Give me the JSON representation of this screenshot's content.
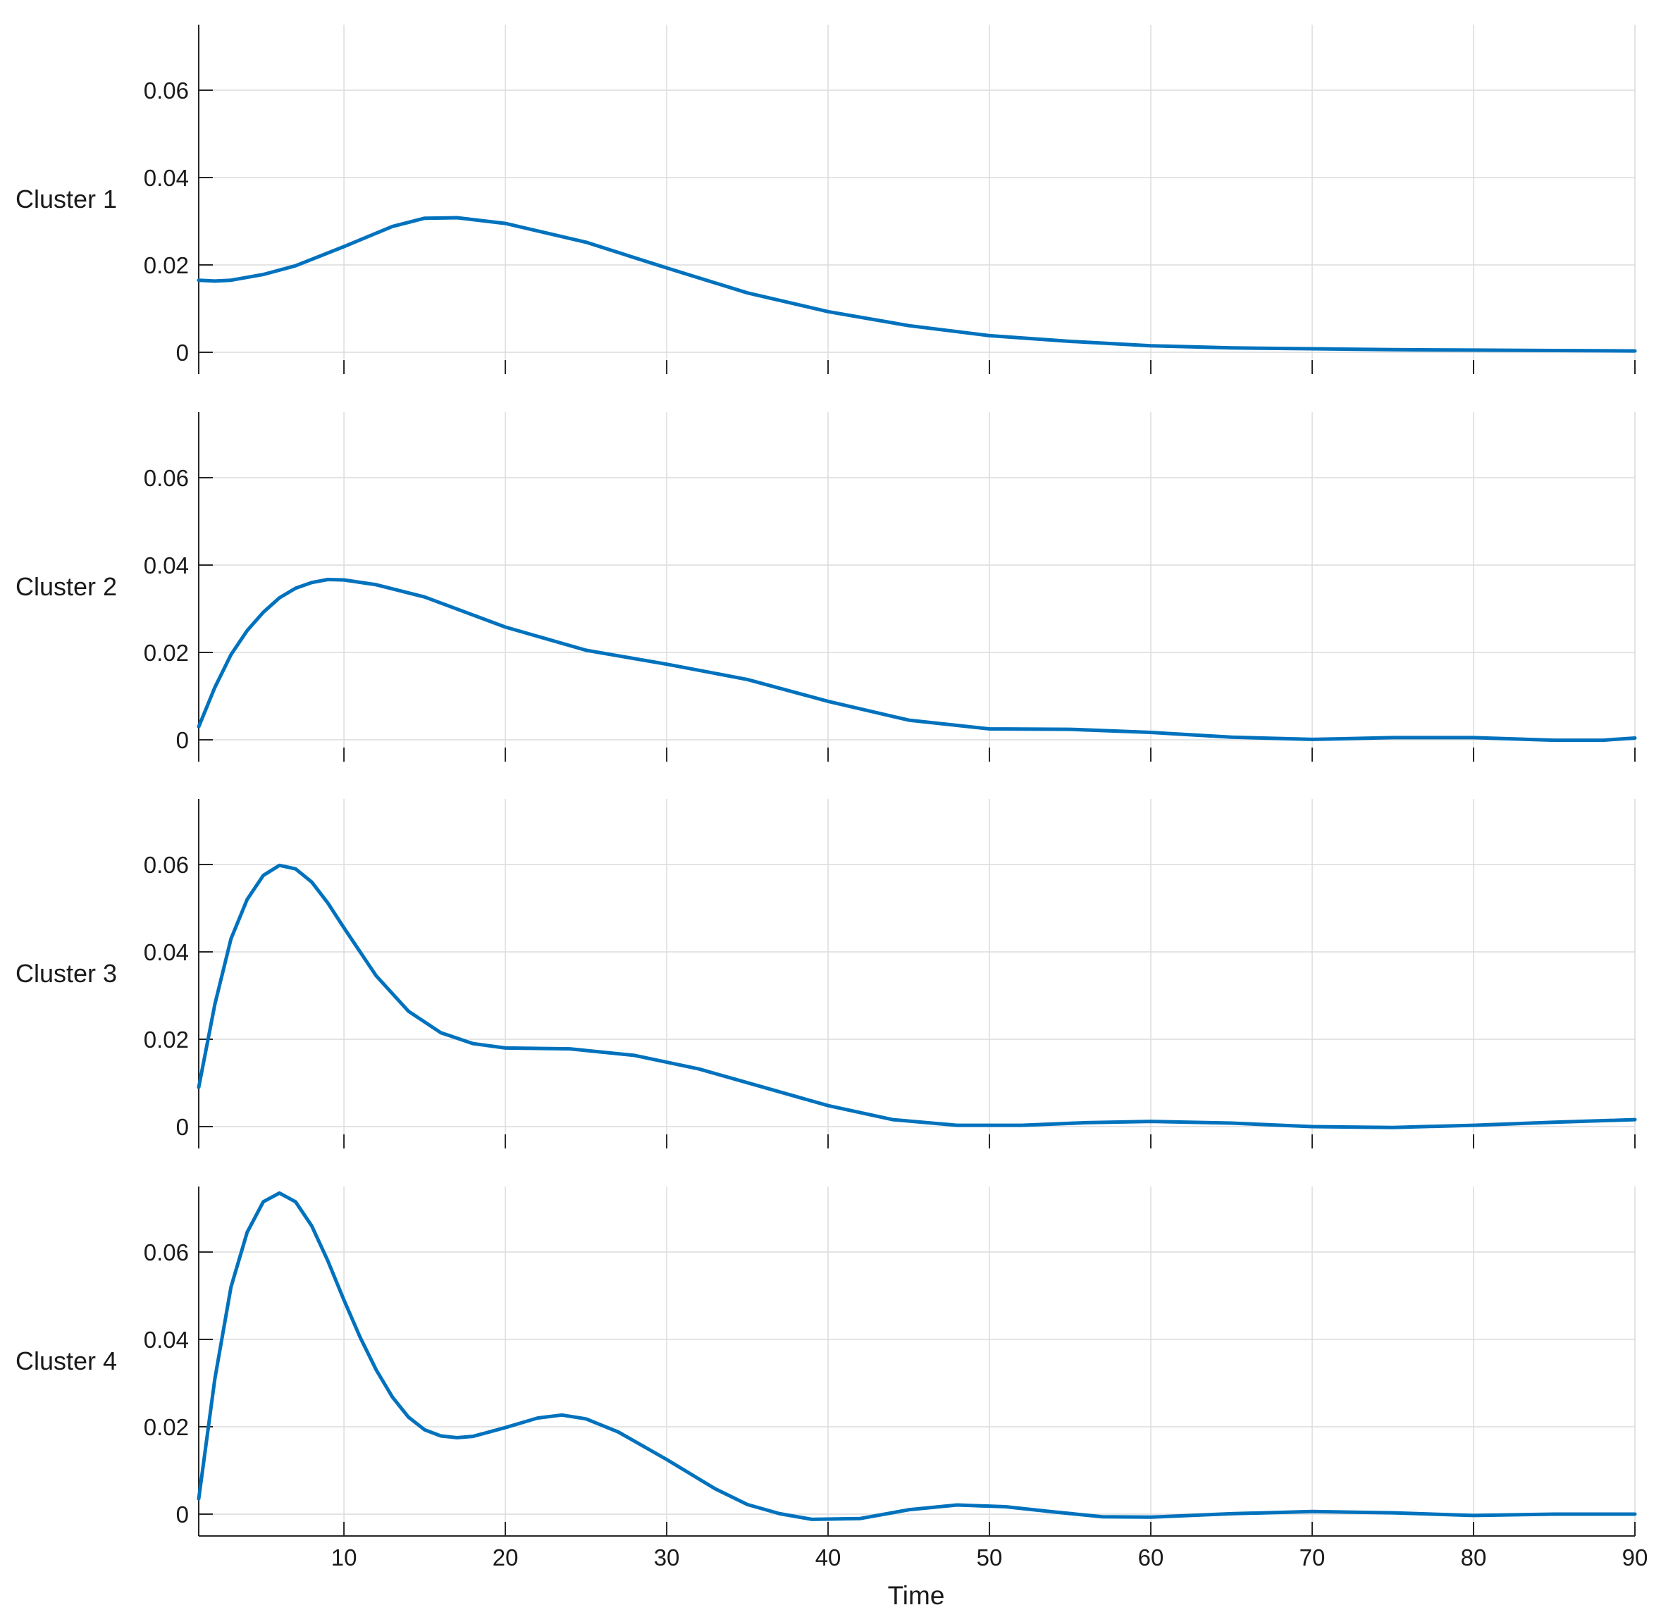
{
  "chart_data": {
    "type": "line",
    "xlabel": "Time",
    "xlim": [
      1,
      90
    ],
    "ylim": [
      -0.005,
      0.075
    ],
    "xticks": [
      10,
      20,
      30,
      40,
      50,
      60,
      70,
      80,
      90
    ],
    "yticks": [
      0,
      0.02,
      0.04,
      0.06
    ],
    "ytick_labels": [
      "0",
      "0.02",
      "0.04",
      "0.06"
    ],
    "grid": true,
    "line_color": "#0072bd",
    "panels": [
      {
        "ylabel": "Cluster 1",
        "x": [
          1,
          2,
          3,
          5,
          7,
          10,
          13,
          15,
          17,
          20,
          25,
          30,
          35,
          40,
          45,
          50,
          55,
          60,
          65,
          70,
          75,
          80,
          85,
          90
        ],
        "y": [
          0.0165,
          0.0163,
          0.0165,
          0.0178,
          0.0198,
          0.0242,
          0.0288,
          0.0307,
          0.0308,
          0.0295,
          0.0252,
          0.0193,
          0.0136,
          0.0093,
          0.0061,
          0.0038,
          0.0025,
          0.0015,
          0.001,
          0.0008,
          0.0006,
          0.0005,
          0.0004,
          0.0003
        ]
      },
      {
        "ylabel": "Cluster 2",
        "x": [
          1,
          2,
          3,
          4,
          5,
          6,
          7,
          8,
          9,
          10,
          12,
          15,
          20,
          25,
          30,
          35,
          40,
          45,
          50,
          55,
          60,
          65,
          70,
          75,
          80,
          85,
          88,
          90
        ],
        "y": [
          0.003,
          0.012,
          0.0195,
          0.025,
          0.0292,
          0.0325,
          0.0347,
          0.036,
          0.0367,
          0.0366,
          0.0355,
          0.0327,
          0.0258,
          0.0205,
          0.0173,
          0.0138,
          0.0088,
          0.0045,
          0.0025,
          0.0024,
          0.0017,
          0.0006,
          0.0001,
          0.0005,
          0.0005,
          -0.0001,
          -0.0001,
          0.0004
        ]
      },
      {
        "ylabel": "Cluster 3",
        "x": [
          1,
          2,
          3,
          4,
          5,
          6,
          7,
          8,
          9,
          10,
          12,
          14,
          16,
          18,
          20,
          24,
          28,
          32,
          36,
          40,
          44,
          48,
          52,
          56,
          60,
          65,
          70,
          75,
          80,
          85,
          90
        ],
        "y": [
          0.009,
          0.028,
          0.043,
          0.052,
          0.0575,
          0.0598,
          0.059,
          0.056,
          0.0512,
          0.0455,
          0.0345,
          0.0264,
          0.0215,
          0.019,
          0.018,
          0.0178,
          0.0163,
          0.0132,
          0.009,
          0.0048,
          0.0016,
          0.0003,
          0.0003,
          0.0009,
          0.0012,
          0.0008,
          0.0,
          -0.0002,
          0.0003,
          0.001,
          0.0016
        ]
      },
      {
        "ylabel": "Cluster 4",
        "x": [
          1,
          2,
          3,
          4,
          5,
          6,
          7,
          8,
          9,
          10,
          11,
          12,
          13,
          14,
          15,
          16,
          17,
          18,
          20,
          22,
          23.5,
          25,
          27,
          30,
          33,
          35,
          37,
          39,
          42,
          45,
          48,
          51,
          54,
          57,
          60,
          65,
          70,
          75,
          80,
          85,
          90
        ],
        "y": [
          0.0035,
          0.031,
          0.052,
          0.0645,
          0.0715,
          0.0735,
          0.0715,
          0.066,
          0.058,
          0.049,
          0.0405,
          0.033,
          0.0268,
          0.0222,
          0.0193,
          0.0179,
          0.0175,
          0.0178,
          0.0198,
          0.022,
          0.0227,
          0.0218,
          0.0188,
          0.0125,
          0.0058,
          0.0022,
          0.0001,
          -0.0012,
          -0.001,
          0.001,
          0.0021,
          0.0017,
          0.0005,
          -0.0006,
          -0.0007,
          0.0001,
          0.0006,
          0.0003,
          -0.0003,
          0.0,
          0.0
        ]
      }
    ]
  }
}
